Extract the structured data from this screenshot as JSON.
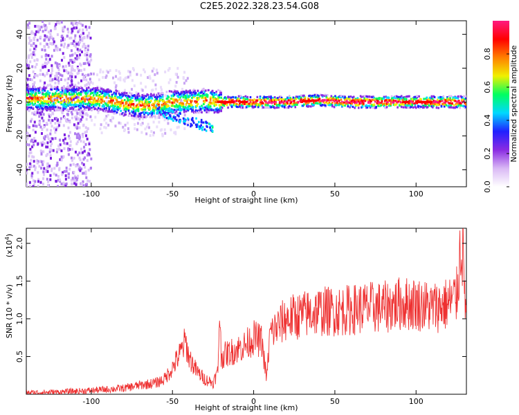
{
  "title": "C2E5.2022.328.23.54.G08",
  "chart_data": [
    {
      "type": "heatmap",
      "xlabel": "Height of straight line (km)",
      "ylabel": "Frequency (Hz)",
      "xlim": [
        -140,
        131
      ],
      "ylim": [
        -50,
        48
      ],
      "xticks": [
        -100,
        -50,
        0,
        50,
        100
      ],
      "yticks": [
        -40,
        -20,
        0,
        20,
        40
      ],
      "colorbar": {
        "label": "Normalized spectral amplitude",
        "range": [
          0,
          1
        ],
        "ticks": [
          "0.0",
          "0.2",
          "0.4",
          "0.6",
          "0.8"
        ],
        "colormap": [
          "#ffffff",
          "#d9b8f5",
          "#8a2be2",
          "#2020ff",
          "#00d8ff",
          "#00ff60",
          "#f0f000",
          "#ff8000",
          "#ff0000",
          "#ff1a80"
        ]
      },
      "ridge": {
        "x": [
          -140,
          -120,
          -100,
          -90,
          -80,
          -70,
          -60,
          -50,
          -40,
          -30,
          -20,
          -10,
          0,
          10,
          20,
          40,
          60,
          80,
          100,
          120,
          131
        ],
        "frequency": [
          2,
          2,
          2,
          1,
          -1,
          -2,
          -2,
          0,
          0,
          1,
          0,
          0,
          0,
          0,
          0,
          1,
          0,
          0,
          0,
          0,
          0
        ]
      }
    },
    {
      "type": "line",
      "xlabel": "Height of straight line (km)",
      "ylabel": "SNR (10 * v/v)",
      "y_exponent_label": "(x10",
      "y_exponent_power": "4",
      "y_exponent_close": ")",
      "xlim": [
        -140,
        131
      ],
      "ylim": [
        0,
        2.2
      ],
      "xticks": [
        -100,
        -50,
        0,
        50,
        100
      ],
      "yticks": [
        "0.5",
        "1.0",
        "1.5",
        "2.0"
      ],
      "color": "#ee3030",
      "series": [
        {
          "x": [
            -140,
            -120,
            -100,
            -80,
            -70,
            -60,
            -55,
            -50,
            -45,
            -42,
            -40,
            -35,
            -30,
            -25,
            -22,
            -21,
            -20,
            -15,
            -10,
            -5,
            0,
            5,
            8,
            10,
            15,
            20,
            30,
            40,
            50,
            60,
            70,
            80,
            90,
            100,
            110,
            120,
            125,
            128,
            131
          ],
          "values": [
            0.02,
            0.03,
            0.05,
            0.08,
            0.12,
            0.15,
            0.2,
            0.35,
            0.55,
            0.7,
            0.5,
            0.3,
            0.2,
            0.15,
            0.3,
            1.15,
            0.5,
            0.55,
            0.6,
            0.65,
            0.75,
            0.7,
            0.2,
            0.8,
            0.9,
            1.0,
            1.05,
            1.1,
            1.1,
            1.12,
            1.15,
            1.15,
            1.2,
            1.2,
            1.15,
            1.2,
            1.3,
            2.1,
            1.0
          ]
        }
      ]
    }
  ]
}
